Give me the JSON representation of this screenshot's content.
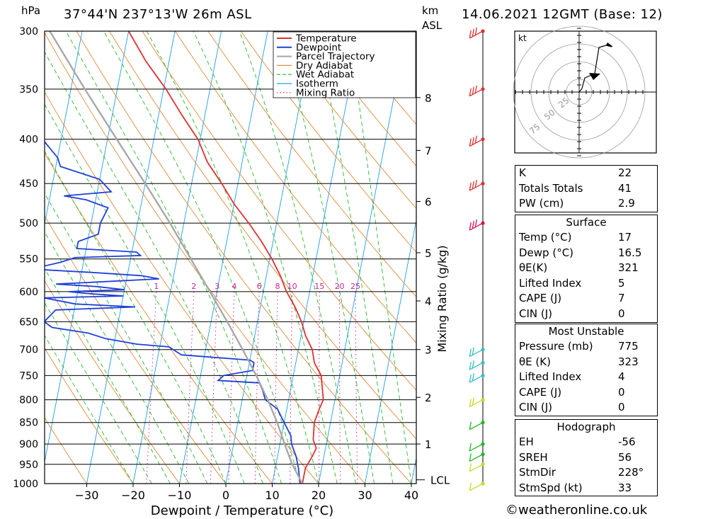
{
  "header": {
    "location": "37°44'N  237°13'W  26m  ASL",
    "datetime": "14.06.2021  12GMT  (Base: 12)",
    "pressure_unit": "hPa",
    "height_unit": "km",
    "height_unit2": "ASL"
  },
  "footer": {
    "credit": "©weatheronline.co.uk"
  },
  "chart_data": {
    "type": "line",
    "subtype": "skew-T log-P diagram",
    "xlabel": "Dewpoint / Temperature (°C)",
    "ylabel_right": "Mixing Ratio (g/kg)",
    "x_ticks": [
      -30,
      -20,
      -10,
      0,
      10,
      20,
      30,
      40
    ],
    "pressure_levels": [
      300,
      350,
      400,
      450,
      500,
      550,
      600,
      650,
      700,
      750,
      800,
      850,
      900,
      950,
      1000
    ],
    "height_km_ticks": [
      1,
      2,
      3,
      4,
      5,
      6,
      7,
      8
    ],
    "lcl_label": "LCL",
    "mixing_ratio_labels": [
      "1",
      "2",
      "3",
      "4",
      "6",
      "8",
      "10",
      "15",
      "20",
      "25"
    ],
    "legend": [
      "Temperature",
      "Dewpoint",
      "Parcel Trajectory",
      "Dry Adiabat",
      "Wet Adiabat",
      "Isotherm",
      "Mixing Ratio"
    ],
    "colors": {
      "temperature": "#e03030",
      "dewpoint": "#2040d8",
      "parcel": "#a8a8a8",
      "dry_adiabat": "#e08a3a",
      "wet_adiabat": "#2ab82a",
      "isotherm": "#1f9fe8",
      "mixing_ratio": "#d0209a"
    },
    "series": [
      {
        "name": "Temperature",
        "points": [
          [
            1000,
            16.5
          ],
          [
            960,
            16.5
          ],
          [
            930,
            17.5
          ],
          [
            910,
            18
          ],
          [
            890,
            17
          ],
          [
            850,
            16.5
          ],
          [
            820,
            17
          ],
          [
            800,
            17.5
          ],
          [
            750,
            16
          ],
          [
            725,
            14
          ],
          [
            700,
            13
          ],
          [
            675,
            11
          ],
          [
            650,
            9.5
          ],
          [
            625,
            7.5
          ],
          [
            600,
            5
          ],
          [
            575,
            3
          ],
          [
            550,
            0.5
          ],
          [
            525,
            -2.5
          ],
          [
            500,
            -6
          ],
          [
            475,
            -10
          ],
          [
            450,
            -13.5
          ],
          [
            425,
            -17.5
          ],
          [
            400,
            -20.5
          ],
          [
            375,
            -25
          ],
          [
            350,
            -29.5
          ],
          [
            325,
            -35
          ],
          [
            300,
            -40
          ]
        ]
      },
      {
        "name": "Dewpoint",
        "points": [
          [
            1000,
            16
          ],
          [
            960,
            15
          ],
          [
            930,
            14
          ],
          [
            910,
            13
          ],
          [
            900,
            12.5
          ],
          [
            880,
            12
          ],
          [
            850,
            10
          ],
          [
            820,
            8
          ],
          [
            800,
            5
          ],
          [
            780,
            4
          ],
          [
            765,
            3
          ],
          [
            760,
            -6
          ],
          [
            750,
            -5
          ],
          [
            740,
            1
          ],
          [
            725,
            1
          ],
          [
            720,
            0
          ],
          [
            710,
            -15
          ],
          [
            700,
            -17
          ],
          [
            695,
            -18
          ],
          [
            690,
            -25
          ],
          [
            680,
            -32
          ],
          [
            670,
            -36
          ],
          [
            660,
            -44
          ],
          [
            650,
            -46
          ],
          [
            630,
            -44
          ],
          [
            625,
            -27
          ],
          [
            620,
            -40
          ],
          [
            610,
            -47
          ],
          [
            607,
            -30
          ],
          [
            603,
            -38
          ],
          [
            600,
            -42
          ],
          [
            597,
            -30
          ],
          [
            592,
            -36
          ],
          [
            588,
            -45
          ],
          [
            580,
            -23
          ],
          [
            575,
            -27
          ],
          [
            570,
            -38
          ],
          [
            565,
            -51
          ],
          [
            555,
            -45
          ],
          [
            548,
            -42
          ],
          [
            545,
            -28
          ],
          [
            540,
            -29
          ],
          [
            535,
            -42
          ],
          [
            525,
            -42
          ],
          [
            515,
            -38
          ],
          [
            500,
            -38
          ],
          [
            480,
            -37
          ],
          [
            470,
            -42
          ],
          [
            465,
            -47
          ],
          [
            460,
            -37
          ],
          [
            445,
            -40
          ],
          [
            430,
            -49
          ],
          [
            420,
            -50
          ],
          [
            400,
            -54
          ],
          [
            380,
            -56
          ],
          [
            370,
            -60
          ],
          [
            350,
            -70
          ],
          [
            330,
            -74
          ],
          [
            300,
            -76
          ]
        ]
      },
      {
        "name": "Parcel Trajectory",
        "points": [
          [
            1000,
            16.5
          ],
          [
            950,
            13.5
          ],
          [
            900,
            11
          ],
          [
            850,
            8.5
          ],
          [
            800,
            5.5
          ],
          [
            750,
            2
          ],
          [
            700,
            -2
          ],
          [
            650,
            -6.5
          ],
          [
            600,
            -11.5
          ],
          [
            550,
            -17
          ],
          [
            500,
            -23
          ],
          [
            450,
            -30
          ],
          [
            400,
            -38
          ],
          [
            350,
            -47
          ],
          [
            300,
            -57
          ]
        ]
      }
    ],
    "hodograph": {
      "unit": "kt",
      "ring_labels": [
        "25",
        "50",
        "75"
      ]
    },
    "wind_barbs_pressure": [
      1000,
      950,
      925,
      900,
      850,
      800,
      750,
      725,
      700,
      500,
      450,
      400,
      350,
      300
    ],
    "indices": {
      "K": "22",
      "Totals Totals": "41",
      "PW (cm)": "2.9"
    }
  },
  "panels": {
    "general": [
      {
        "k": "K",
        "v": "22"
      },
      {
        "k": "Totals Totals",
        "v": "41"
      },
      {
        "k": "PW (cm)",
        "v": "2.9"
      }
    ],
    "surface": {
      "title": "Surface",
      "rows": [
        {
          "k": "Temp (°C)",
          "v": "17"
        },
        {
          "k": "Dewp (°C)",
          "v": "16.5"
        },
        {
          "k": "θE(K)",
          "v": "321"
        },
        {
          "k": "Lifted Index",
          "v": "5"
        },
        {
          "k": "CAPE (J)",
          "v": "7"
        },
        {
          "k": "CIN (J)",
          "v": "0"
        }
      ]
    },
    "unstable": {
      "title": "Most Unstable",
      "rows": [
        {
          "k": "Pressure (mb)",
          "v": "775"
        },
        {
          "k": "θE (K)",
          "v": "323"
        },
        {
          "k": "Lifted Index",
          "v": "4"
        },
        {
          "k": "CAPE (J)",
          "v": "0"
        },
        {
          "k": "CIN (J)",
          "v": "0"
        }
      ]
    },
    "hodograph": {
      "title": "Hodograph",
      "rows": [
        {
          "k": "EH",
          "v": "-56"
        },
        {
          "k": "SREH",
          "v": "56"
        },
        {
          "k": "StmDir",
          "v": "228°"
        },
        {
          "k": "StmSpd (kt)",
          "v": "33"
        }
      ]
    }
  }
}
